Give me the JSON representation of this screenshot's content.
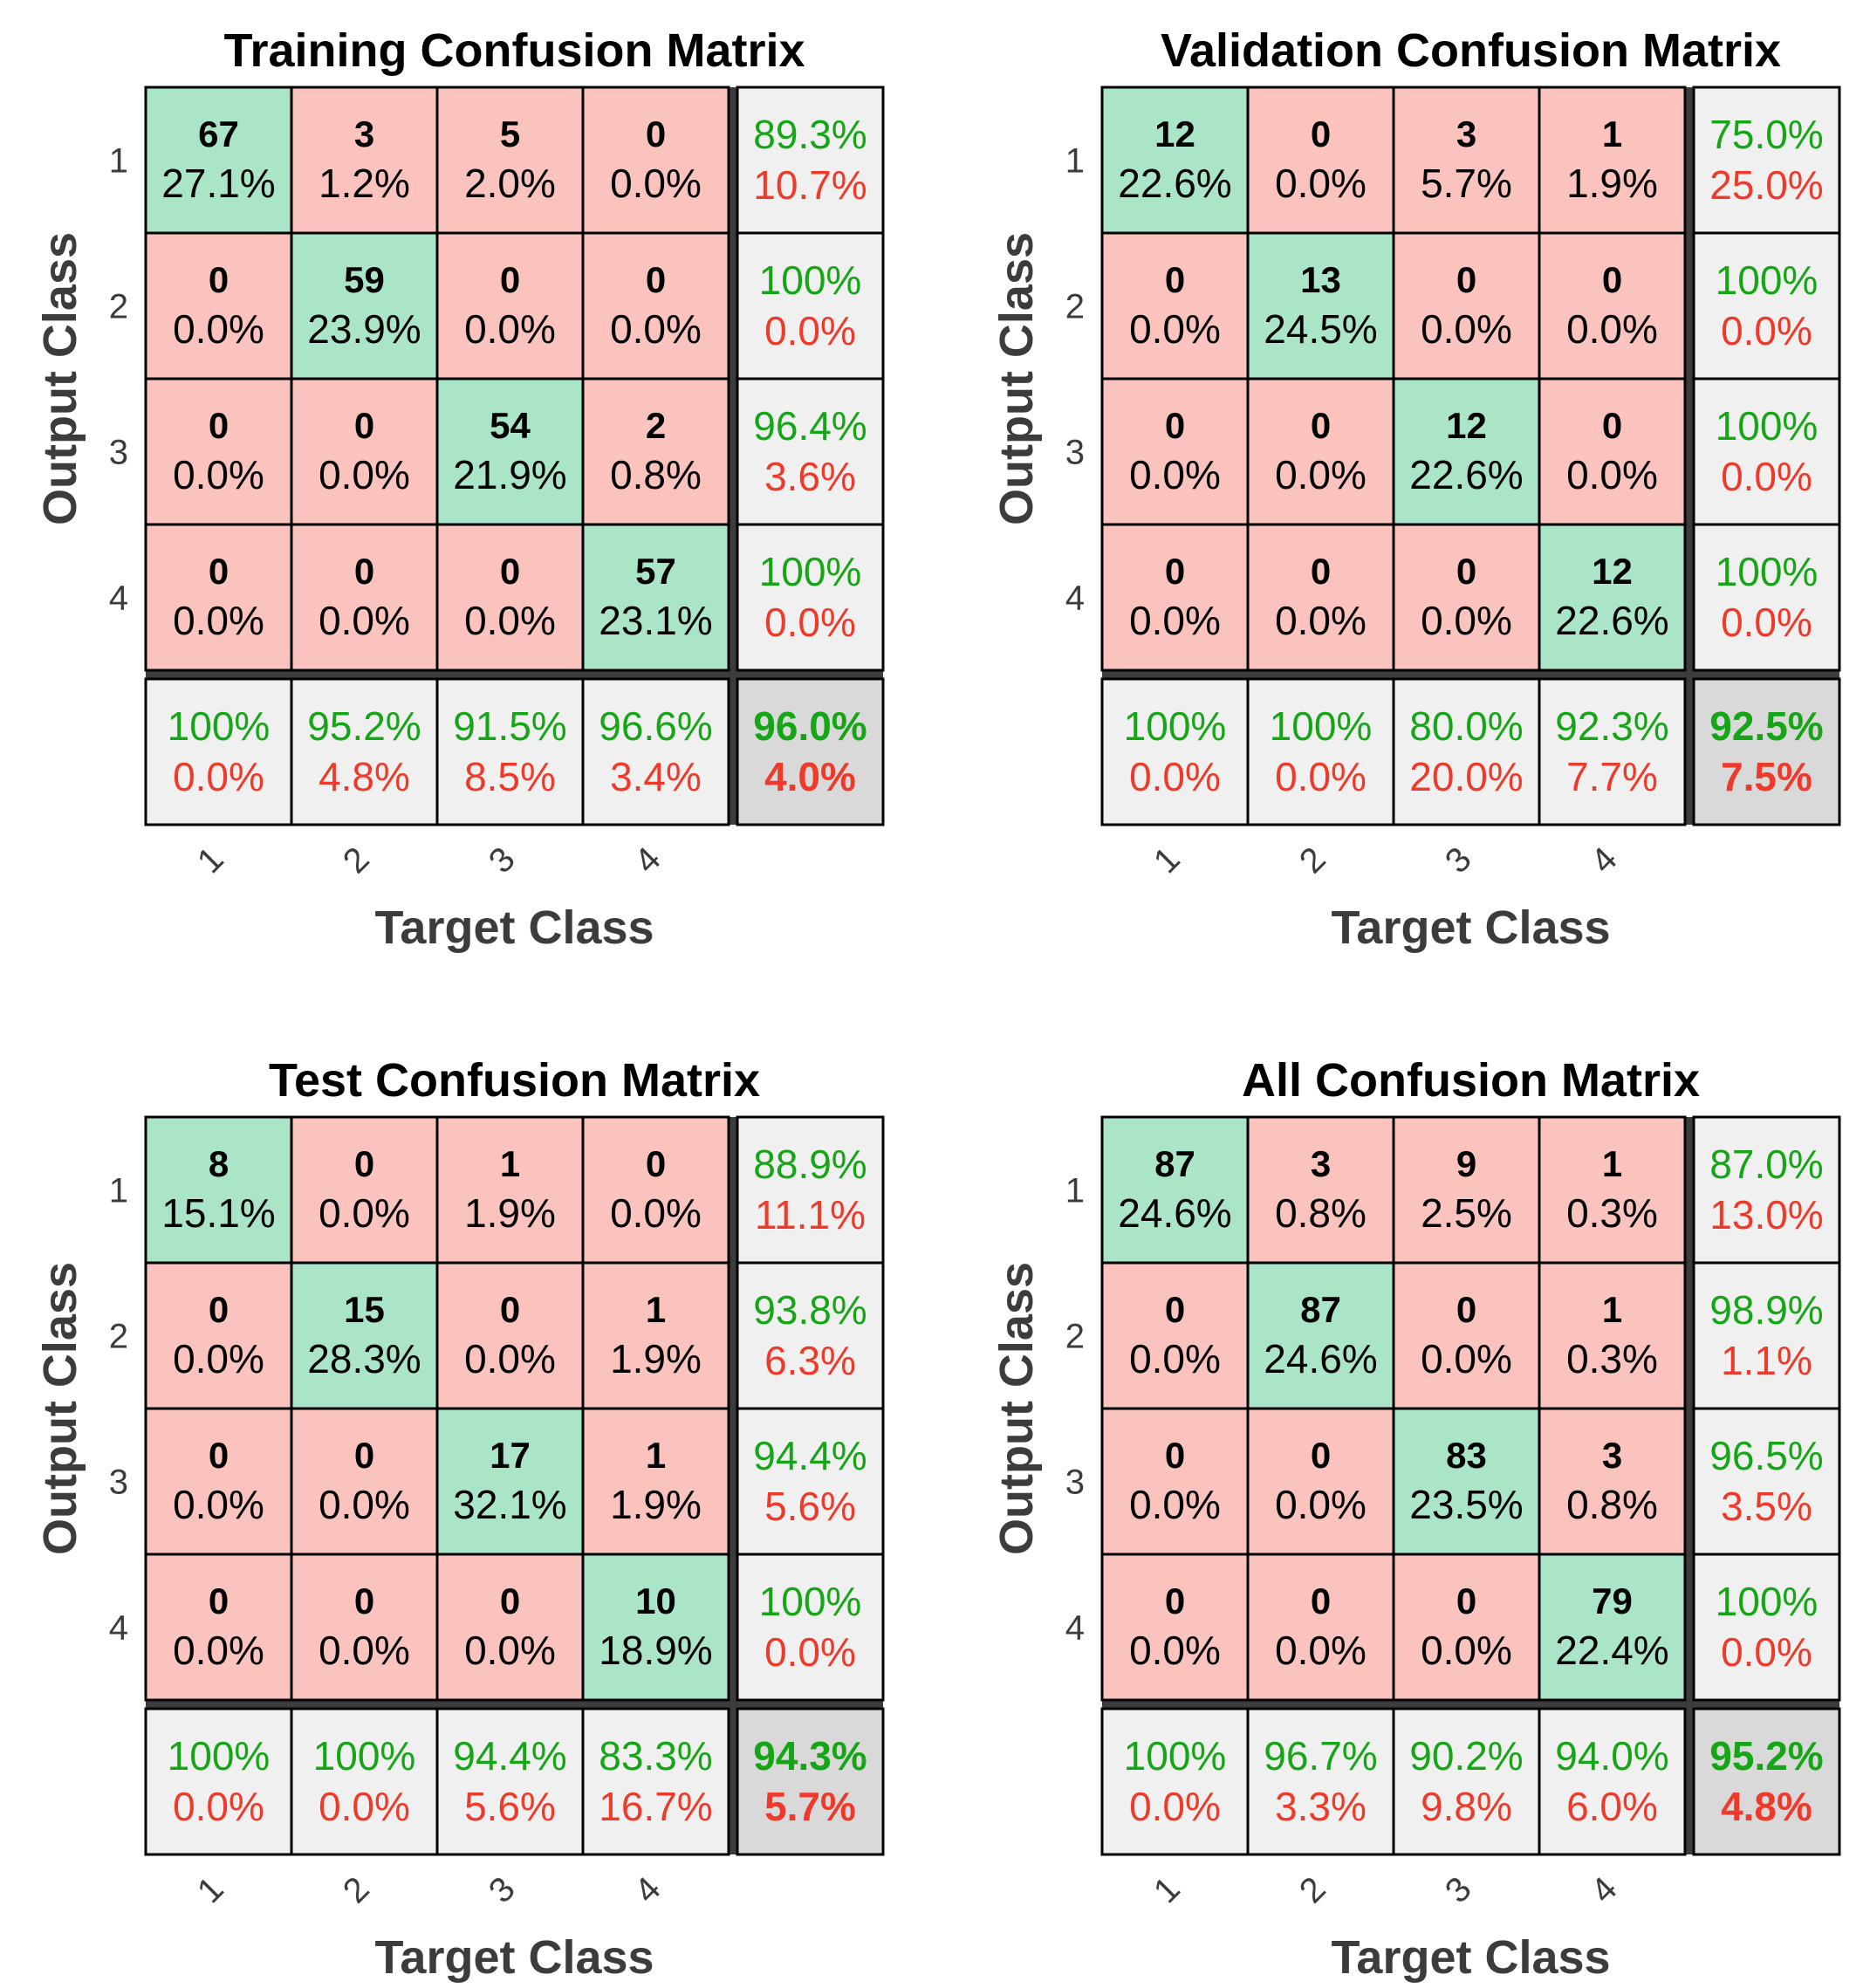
{
  "colors": {
    "correct_cell": "#aae5c8",
    "wrong_cell": "#fbc3bd",
    "summary_cell": "#f0f0f0",
    "overall_cell": "#d9d9d9",
    "green_text": "#16a516",
    "red_text": "#ee3a2a",
    "grid_line": "#000000",
    "separator": "#3c3c3c"
  },
  "chart_data": [
    {
      "type": "heatmap",
      "title": "Training Confusion Matrix",
      "xlabel": "Target Class",
      "ylabel": "Output Class",
      "classes": [
        "1",
        "2",
        "3",
        "4"
      ],
      "counts": [
        [
          67,
          3,
          5,
          0
        ],
        [
          0,
          59,
          0,
          0
        ],
        [
          0,
          0,
          54,
          2
        ],
        [
          0,
          0,
          0,
          57
        ]
      ],
      "cell_pct": [
        [
          "27.1%",
          "1.2%",
          "2.0%",
          "0.0%"
        ],
        [
          "0.0%",
          "23.9%",
          "0.0%",
          "0.0%"
        ],
        [
          "0.0%",
          "0.0%",
          "21.9%",
          "0.8%"
        ],
        [
          "0.0%",
          "0.0%",
          "0.0%",
          "23.1%"
        ]
      ],
      "row_summary": [
        [
          "89.3%",
          "10.7%"
        ],
        [
          "100%",
          "0.0%"
        ],
        [
          "96.4%",
          "3.6%"
        ],
        [
          "100%",
          "0.0%"
        ]
      ],
      "col_summary": [
        [
          "100%",
          "0.0%"
        ],
        [
          "95.2%",
          "4.8%"
        ],
        [
          "91.5%",
          "8.5%"
        ],
        [
          "96.6%",
          "3.4%"
        ]
      ],
      "overall": [
        "96.0%",
        "4.0%"
      ]
    },
    {
      "type": "heatmap",
      "title": "Validation Confusion Matrix",
      "xlabel": "Target Class",
      "ylabel": "Output Class",
      "classes": [
        "1",
        "2",
        "3",
        "4"
      ],
      "counts": [
        [
          12,
          0,
          3,
          1
        ],
        [
          0,
          13,
          0,
          0
        ],
        [
          0,
          0,
          12,
          0
        ],
        [
          0,
          0,
          0,
          12
        ]
      ],
      "cell_pct": [
        [
          "22.6%",
          "0.0%",
          "5.7%",
          "1.9%"
        ],
        [
          "0.0%",
          "24.5%",
          "0.0%",
          "0.0%"
        ],
        [
          "0.0%",
          "0.0%",
          "22.6%",
          "0.0%"
        ],
        [
          "0.0%",
          "0.0%",
          "0.0%",
          "22.6%"
        ]
      ],
      "row_summary": [
        [
          "75.0%",
          "25.0%"
        ],
        [
          "100%",
          "0.0%"
        ],
        [
          "100%",
          "0.0%"
        ],
        [
          "100%",
          "0.0%"
        ]
      ],
      "col_summary": [
        [
          "100%",
          "0.0%"
        ],
        [
          "100%",
          "0.0%"
        ],
        [
          "80.0%",
          "20.0%"
        ],
        [
          "92.3%",
          "7.7%"
        ]
      ],
      "overall": [
        "92.5%",
        "7.5%"
      ]
    },
    {
      "type": "heatmap",
      "title": "Test Confusion Matrix",
      "xlabel": "Target Class",
      "ylabel": "Output Class",
      "classes": [
        "1",
        "2",
        "3",
        "4"
      ],
      "counts": [
        [
          8,
          0,
          1,
          0
        ],
        [
          0,
          15,
          0,
          1
        ],
        [
          0,
          0,
          17,
          1
        ],
        [
          0,
          0,
          0,
          10
        ]
      ],
      "cell_pct": [
        [
          "15.1%",
          "0.0%",
          "1.9%",
          "0.0%"
        ],
        [
          "0.0%",
          "28.3%",
          "0.0%",
          "1.9%"
        ],
        [
          "0.0%",
          "0.0%",
          "32.1%",
          "1.9%"
        ],
        [
          "0.0%",
          "0.0%",
          "0.0%",
          "18.9%"
        ]
      ],
      "row_summary": [
        [
          "88.9%",
          "11.1%"
        ],
        [
          "93.8%",
          "6.3%"
        ],
        [
          "94.4%",
          "5.6%"
        ],
        [
          "100%",
          "0.0%"
        ]
      ],
      "col_summary": [
        [
          "100%",
          "0.0%"
        ],
        [
          "100%",
          "0.0%"
        ],
        [
          "94.4%",
          "5.6%"
        ],
        [
          "83.3%",
          "16.7%"
        ]
      ],
      "overall": [
        "94.3%",
        "5.7%"
      ]
    },
    {
      "type": "heatmap",
      "title": "All Confusion Matrix",
      "xlabel": "Target Class",
      "ylabel": "Output Class",
      "classes": [
        "1",
        "2",
        "3",
        "4"
      ],
      "counts": [
        [
          87,
          3,
          9,
          1
        ],
        [
          0,
          87,
          0,
          1
        ],
        [
          0,
          0,
          83,
          3
        ],
        [
          0,
          0,
          0,
          79
        ]
      ],
      "cell_pct": [
        [
          "24.6%",
          "0.8%",
          "2.5%",
          "0.3%"
        ],
        [
          "0.0%",
          "24.6%",
          "0.0%",
          "0.3%"
        ],
        [
          "0.0%",
          "0.0%",
          "23.5%",
          "0.8%"
        ],
        [
          "0.0%",
          "0.0%",
          "0.0%",
          "22.4%"
        ]
      ],
      "row_summary": [
        [
          "87.0%",
          "13.0%"
        ],
        [
          "98.9%",
          "1.1%"
        ],
        [
          "96.5%",
          "3.5%"
        ],
        [
          "100%",
          "0.0%"
        ]
      ],
      "col_summary": [
        [
          "100%",
          "0.0%"
        ],
        [
          "96.7%",
          "3.3%"
        ],
        [
          "90.2%",
          "9.8%"
        ],
        [
          "94.0%",
          "6.0%"
        ]
      ],
      "overall": [
        "95.2%",
        "4.8%"
      ]
    }
  ]
}
